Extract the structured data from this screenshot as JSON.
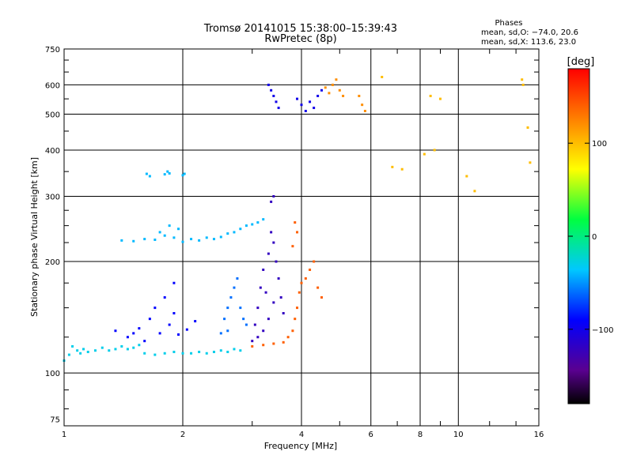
{
  "chart_data": {
    "type": "scatter",
    "title": "Tromsø 20141015 15:38:00–15:39:43",
    "subtitle": "RwPretec (8p)",
    "xlabel": "Frequency [MHz]",
    "ylabel": "Stationary phase Virtual Height [km]",
    "x_scale": "log",
    "y_scale": "log",
    "xlim": [
      1,
      16
    ],
    "ylim": [
      72,
      750
    ],
    "x_ticks": [
      "1",
      "2",
      "4",
      "6",
      "8",
      "10",
      "16"
    ],
    "y_ticks": [
      "75",
      "100",
      "200",
      "300",
      "400",
      "500",
      "600",
      "750"
    ],
    "grid": true,
    "phase_info": {
      "heading": "Phases",
      "line1": "mean, sd,O: −74.0, 20.6",
      "line2": "mean, sd,X: 113.6, 23.0"
    },
    "colorbar": {
      "unit": "[deg]",
      "ticks": [
        "100",
        "0",
        "−100"
      ],
      "tick_values": [
        100,
        0,
        -100
      ],
      "range": [
        -180,
        180
      ],
      "colormap": "rainbow (black→purple→blue→cyan→green→yellow→red)"
    },
    "series": [
      {
        "trace": "low-freq-band",
        "color_deg": -30,
        "points": [
          [
            1.0,
            108
          ],
          [
            1.03,
            112
          ],
          [
            1.05,
            118
          ],
          [
            1.08,
            115
          ],
          [
            1.1,
            113
          ],
          [
            1.12,
            116
          ],
          [
            1.15,
            114
          ],
          [
            1.2,
            115
          ],
          [
            1.25,
            117
          ],
          [
            1.3,
            115
          ],
          [
            1.35,
            116
          ],
          [
            1.4,
            118
          ],
          [
            1.45,
            116
          ],
          [
            1.5,
            117
          ],
          [
            1.55,
            119
          ],
          [
            1.6,
            113
          ],
          [
            1.7,
            112
          ],
          [
            1.8,
            113
          ],
          [
            1.9,
            114
          ],
          [
            2.0,
            113
          ],
          [
            2.1,
            113
          ],
          [
            2.2,
            114
          ],
          [
            2.3,
            113
          ],
          [
            2.4,
            114
          ],
          [
            2.5,
            115
          ],
          [
            2.6,
            114
          ],
          [
            2.7,
            116
          ],
          [
            2.8,
            115
          ]
        ]
      },
      {
        "trace": "scatter-low-band",
        "color_deg": -90,
        "points": [
          [
            1.35,
            130
          ],
          [
            1.45,
            125
          ],
          [
            1.55,
            132
          ],
          [
            1.65,
            140
          ],
          [
            1.75,
            128
          ],
          [
            1.85,
            135
          ],
          [
            1.9,
            145
          ],
          [
            1.95,
            127
          ],
          [
            2.05,
            131
          ],
          [
            2.15,
            138
          ],
          [
            1.7,
            150
          ],
          [
            1.8,
            160
          ],
          [
            1.9,
            175
          ],
          [
            1.6,
            122
          ],
          [
            1.5,
            128
          ]
        ]
      },
      {
        "trace": "band-225km",
        "color_deg": -40,
        "points": [
          [
            1.4,
            228
          ],
          [
            1.5,
            227
          ],
          [
            1.6,
            230
          ],
          [
            1.7,
            229
          ],
          [
            1.75,
            240
          ],
          [
            1.8,
            235
          ],
          [
            1.85,
            250
          ],
          [
            1.9,
            232
          ],
          [
            1.95,
            245
          ],
          [
            2.0,
            226
          ],
          [
            2.1,
            230
          ],
          [
            2.2,
            228
          ],
          [
            2.3,
            232
          ],
          [
            2.4,
            230
          ],
          [
            2.5,
            233
          ],
          [
            2.6,
            238
          ],
          [
            2.7,
            240
          ],
          [
            2.8,
            245
          ],
          [
            2.9,
            250
          ],
          [
            3.0,
            252
          ],
          [
            3.1,
            255
          ],
          [
            3.2,
            260
          ]
        ]
      },
      {
        "trace": "band-340km",
        "color_deg": -40,
        "points": [
          [
            1.62,
            345
          ],
          [
            1.65,
            340
          ],
          [
            1.8,
            344
          ],
          [
            1.83,
            350
          ],
          [
            1.85,
            346
          ],
          [
            2.0,
            342
          ],
          [
            2.02,
            345
          ]
        ]
      },
      {
        "trace": "cusp-2.4-2.9",
        "color_deg": -60,
        "points": [
          [
            2.5,
            128
          ],
          [
            2.55,
            140
          ],
          [
            2.6,
            150
          ],
          [
            2.65,
            160
          ],
          [
            2.7,
            170
          ],
          [
            2.75,
            180
          ],
          [
            2.8,
            150
          ],
          [
            2.85,
            140
          ],
          [
            2.9,
            135
          ],
          [
            2.6,
            130
          ]
        ]
      },
      {
        "trace": "dense-3.0-3.6",
        "color_deg": -120,
        "points": [
          [
            3.0,
            122
          ],
          [
            3.05,
            135
          ],
          [
            3.1,
            150
          ],
          [
            3.15,
            170
          ],
          [
            3.2,
            190
          ],
          [
            3.25,
            165
          ],
          [
            3.3,
            210
          ],
          [
            3.35,
            240
          ],
          [
            3.4,
            225
          ],
          [
            3.45,
            200
          ],
          [
            3.5,
            180
          ],
          [
            3.55,
            160
          ],
          [
            3.6,
            145
          ],
          [
            3.3,
            140
          ],
          [
            3.2,
            130
          ],
          [
            3.1,
            125
          ],
          [
            3.4,
            155
          ],
          [
            3.35,
            290
          ],
          [
            3.4,
            300
          ]
        ]
      },
      {
        "trace": "x-mode-orange",
        "color_deg": 140,
        "points": [
          [
            3.0,
            118
          ],
          [
            3.2,
            119
          ],
          [
            3.4,
            120
          ],
          [
            3.6,
            121
          ],
          [
            3.7,
            125
          ],
          [
            3.8,
            130
          ],
          [
            3.85,
            140
          ],
          [
            3.9,
            150
          ],
          [
            3.95,
            165
          ],
          [
            4.0,
            175
          ],
          [
            4.1,
            180
          ],
          [
            4.2,
            190
          ],
          [
            4.3,
            200
          ],
          [
            4.4,
            170
          ],
          [
            4.5,
            160
          ],
          [
            3.8,
            220
          ],
          [
            3.9,
            240
          ],
          [
            3.85,
            255
          ]
        ]
      },
      {
        "trace": "f2-upper",
        "color_deg": -100,
        "points": [
          [
            3.3,
            600
          ],
          [
            3.35,
            580
          ],
          [
            3.4,
            560
          ],
          [
            3.45,
            540
          ],
          [
            3.5,
            520
          ],
          [
            3.9,
            550
          ],
          [
            4.0,
            530
          ],
          [
            4.1,
            510
          ],
          [
            4.2,
            540
          ],
          [
            4.3,
            520
          ],
          [
            4.4,
            560
          ],
          [
            4.5,
            580
          ]
        ]
      },
      {
        "trace": "f2-upper-x",
        "color_deg": 120,
        "points": [
          [
            4.6,
            590
          ],
          [
            4.7,
            570
          ],
          [
            4.8,
            600
          ],
          [
            4.9,
            620
          ],
          [
            5.0,
            580
          ],
          [
            5.1,
            560
          ],
          [
            5.6,
            560
          ],
          [
            5.7,
            530
          ],
          [
            5.8,
            510
          ]
        ]
      },
      {
        "trace": "sparse-high",
        "color_deg": 100,
        "points": [
          [
            6.4,
            630
          ],
          [
            6.8,
            360
          ],
          [
            7.2,
            355
          ],
          [
            8.5,
            560
          ],
          [
            9.0,
            550
          ],
          [
            8.2,
            390
          ],
          [
            8.7,
            400
          ],
          [
            10.5,
            340
          ],
          [
            14.5,
            620
          ],
          [
            14.6,
            600
          ],
          [
            15.0,
            460
          ],
          [
            15.2,
            370
          ],
          [
            11.0,
            310
          ]
        ]
      }
    ]
  }
}
